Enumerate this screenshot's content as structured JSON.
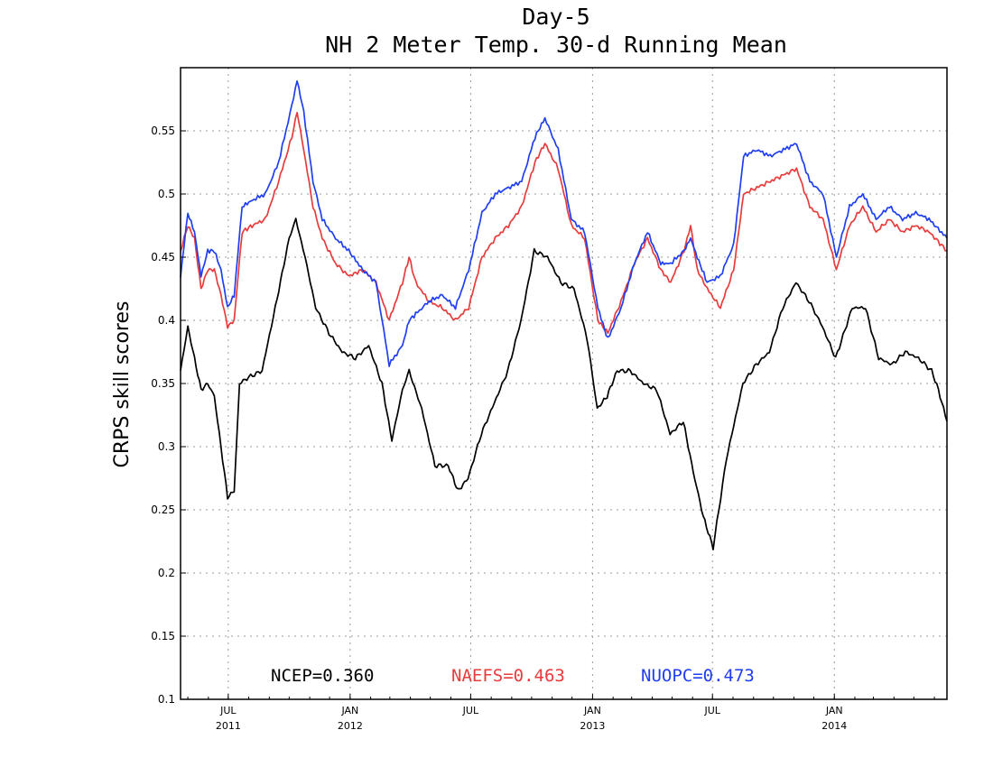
{
  "chart_data": {
    "type": "line",
    "title": "Day-5",
    "subtitle": "NH 2 Meter Temp. 30-d Running Mean",
    "ylabel": "CRPS skill scores",
    "xlabel": "",
    "ylim": [
      0.1,
      0.6
    ],
    "xlim": [
      "2011-04-20",
      "2014-06-20"
    ],
    "grid": true,
    "legend_position": "bottom",
    "yticks": [
      "0.1",
      "0.15",
      "0.2",
      "0.25",
      "0.3",
      "0.35",
      "0.4",
      "0.45",
      "0.5",
      "0.55"
    ],
    "xticks": [
      {
        "date": "2011-07-01",
        "label": "JUL",
        "sublabel": "2011"
      },
      {
        "date": "2012-01-01",
        "label": "JAN",
        "sublabel": "2012"
      },
      {
        "date": "2012-07-01",
        "label": "JUL",
        "sublabel": ""
      },
      {
        "date": "2013-01-01",
        "label": "JAN",
        "sublabel": "2013"
      },
      {
        "date": "2013-07-01",
        "label": "JUL",
        "sublabel": ""
      },
      {
        "date": "2014-01-01",
        "label": "JAN",
        "sublabel": "2014"
      }
    ],
    "series": [
      {
        "name": "NCEP",
        "color": "#000000",
        "legend": "NCEP=0.360",
        "points": [
          [
            "2011-04-20",
            0.36
          ],
          [
            "2011-05-01",
            0.395
          ],
          [
            "2011-05-11",
            0.37
          ],
          [
            "2011-05-21",
            0.345
          ],
          [
            "2011-05-31",
            0.35
          ],
          [
            "2011-06-10",
            0.34
          ],
          [
            "2011-06-20",
            0.3
          ],
          [
            "2011-06-30",
            0.26
          ],
          [
            "2011-07-10",
            0.265
          ],
          [
            "2011-07-18",
            0.35
          ],
          [
            "2011-08-01",
            0.355
          ],
          [
            "2011-08-21",
            0.36
          ],
          [
            "2011-09-10",
            0.41
          ],
          [
            "2011-10-01",
            0.465
          ],
          [
            "2011-10-11",
            0.48
          ],
          [
            "2011-10-25",
            0.45
          ],
          [
            "2011-11-10",
            0.41
          ],
          [
            "2011-11-30",
            0.39
          ],
          [
            "2011-12-20",
            0.375
          ],
          [
            "2012-01-09",
            0.37
          ],
          [
            "2012-01-29",
            0.38
          ],
          [
            "2012-02-18",
            0.35
          ],
          [
            "2012-03-04",
            0.305
          ],
          [
            "2012-03-20",
            0.345
          ],
          [
            "2012-03-30",
            0.36
          ],
          [
            "2012-04-18",
            0.33
          ],
          [
            "2012-05-08",
            0.285
          ],
          [
            "2012-05-28",
            0.285
          ],
          [
            "2012-06-12",
            0.265
          ],
          [
            "2012-06-27",
            0.275
          ],
          [
            "2012-07-17",
            0.31
          ],
          [
            "2012-08-06",
            0.335
          ],
          [
            "2012-08-26",
            0.36
          ],
          [
            "2012-09-15",
            0.4
          ],
          [
            "2012-10-05",
            0.455
          ],
          [
            "2012-10-25",
            0.45
          ],
          [
            "2012-11-14",
            0.43
          ],
          [
            "2012-12-04",
            0.425
          ],
          [
            "2012-12-24",
            0.385
          ],
          [
            "2013-01-08",
            0.33
          ],
          [
            "2013-01-23",
            0.34
          ],
          [
            "2013-02-07",
            0.36
          ],
          [
            "2013-02-27",
            0.36
          ],
          [
            "2013-03-19",
            0.35
          ],
          [
            "2013-04-08",
            0.345
          ],
          [
            "2013-04-28",
            0.31
          ],
          [
            "2013-05-18",
            0.32
          ],
          [
            "2013-06-02",
            0.28
          ],
          [
            "2013-06-17",
            0.245
          ],
          [
            "2013-07-02",
            0.22
          ],
          [
            "2013-07-22",
            0.29
          ],
          [
            "2013-08-16",
            0.35
          ],
          [
            "2013-09-05",
            0.365
          ],
          [
            "2013-09-25",
            0.375
          ],
          [
            "2013-10-15",
            0.41
          ],
          [
            "2013-11-04",
            0.43
          ],
          [
            "2013-11-24",
            0.415
          ],
          [
            "2013-12-14",
            0.395
          ],
          [
            "2014-01-03",
            0.37
          ],
          [
            "2014-01-28",
            0.41
          ],
          [
            "2014-02-17",
            0.41
          ],
          [
            "2014-03-09",
            0.37
          ],
          [
            "2014-03-29",
            0.365
          ],
          [
            "2014-04-18",
            0.375
          ],
          [
            "2014-05-08",
            0.37
          ],
          [
            "2014-05-28",
            0.36
          ],
          [
            "2014-06-07",
            0.345
          ],
          [
            "2014-06-20",
            0.32
          ]
        ]
      },
      {
        "name": "NAEFS",
        "color": "#e83c3c",
        "legend": "NAEFS=0.463",
        "points": [
          [
            "2011-04-20",
            0.455
          ],
          [
            "2011-05-01",
            0.475
          ],
          [
            "2011-05-11",
            0.465
          ],
          [
            "2011-05-21",
            0.425
          ],
          [
            "2011-05-31",
            0.44
          ],
          [
            "2011-06-10",
            0.44
          ],
          [
            "2011-06-20",
            0.42
          ],
          [
            "2011-06-30",
            0.395
          ],
          [
            "2011-07-10",
            0.4
          ],
          [
            "2011-07-22",
            0.47
          ],
          [
            "2011-08-06",
            0.475
          ],
          [
            "2011-08-26",
            0.48
          ],
          [
            "2011-09-15",
            0.51
          ],
          [
            "2011-10-05",
            0.545
          ],
          [
            "2011-10-13",
            0.565
          ],
          [
            "2011-10-23",
            0.535
          ],
          [
            "2011-11-06",
            0.49
          ],
          [
            "2011-11-20",
            0.465
          ],
          [
            "2011-12-10",
            0.445
          ],
          [
            "2011-12-30",
            0.435
          ],
          [
            "2012-01-20",
            0.44
          ],
          [
            "2012-02-09",
            0.43
          ],
          [
            "2012-02-29",
            0.4
          ],
          [
            "2012-03-20",
            0.43
          ],
          [
            "2012-03-30",
            0.45
          ],
          [
            "2012-04-09",
            0.43
          ],
          [
            "2012-04-29",
            0.415
          ],
          [
            "2012-05-19",
            0.41
          ],
          [
            "2012-06-08",
            0.4
          ],
          [
            "2012-06-28",
            0.41
          ],
          [
            "2012-07-18",
            0.45
          ],
          [
            "2012-08-07",
            0.465
          ],
          [
            "2012-08-27",
            0.475
          ],
          [
            "2012-09-16",
            0.49
          ],
          [
            "2012-10-06",
            0.525
          ],
          [
            "2012-10-21",
            0.54
          ],
          [
            "2012-11-10",
            0.52
          ],
          [
            "2012-11-30",
            0.475
          ],
          [
            "2012-12-20",
            0.465
          ],
          [
            "2013-01-09",
            0.4
          ],
          [
            "2013-01-24",
            0.39
          ],
          [
            "2013-02-13",
            0.415
          ],
          [
            "2013-03-05",
            0.445
          ],
          [
            "2013-03-25",
            0.465
          ],
          [
            "2013-04-14",
            0.44
          ],
          [
            "2013-04-29",
            0.43
          ],
          [
            "2013-05-19",
            0.455
          ],
          [
            "2013-05-29",
            0.475
          ],
          [
            "2013-06-08",
            0.44
          ],
          [
            "2013-06-23",
            0.425
          ],
          [
            "2013-07-13",
            0.41
          ],
          [
            "2013-08-02",
            0.44
          ],
          [
            "2013-08-17",
            0.5
          ],
          [
            "2013-09-06",
            0.505
          ],
          [
            "2013-09-26",
            0.51
          ],
          [
            "2013-10-16",
            0.515
          ],
          [
            "2013-11-05",
            0.52
          ],
          [
            "2013-11-25",
            0.49
          ],
          [
            "2013-12-15",
            0.48
          ],
          [
            "2014-01-04",
            0.44
          ],
          [
            "2014-01-24",
            0.475
          ],
          [
            "2014-02-13",
            0.49
          ],
          [
            "2014-03-05",
            0.47
          ],
          [
            "2014-03-25",
            0.48
          ],
          [
            "2014-04-14",
            0.47
          ],
          [
            "2014-05-04",
            0.475
          ],
          [
            "2014-05-24",
            0.47
          ],
          [
            "2014-06-20",
            0.455
          ]
        ]
      },
      {
        "name": "NUOPC",
        "color": "#1f3ff0",
        "legend": "NUOPC=0.473",
        "points": [
          [
            "2011-04-20",
            0.435
          ],
          [
            "2011-05-01",
            0.485
          ],
          [
            "2011-05-11",
            0.47
          ],
          [
            "2011-05-21",
            0.435
          ],
          [
            "2011-05-31",
            0.455
          ],
          [
            "2011-06-10",
            0.455
          ],
          [
            "2011-06-20",
            0.44
          ],
          [
            "2011-06-30",
            0.41
          ],
          [
            "2011-07-10",
            0.42
          ],
          [
            "2011-07-22",
            0.49
          ],
          [
            "2011-08-06",
            0.495
          ],
          [
            "2011-08-26",
            0.5
          ],
          [
            "2011-09-15",
            0.525
          ],
          [
            "2011-10-05",
            0.57
          ],
          [
            "2011-10-13",
            0.59
          ],
          [
            "2011-10-23",
            0.565
          ],
          [
            "2011-11-06",
            0.51
          ],
          [
            "2011-11-20",
            0.48
          ],
          [
            "2011-12-10",
            0.465
          ],
          [
            "2011-12-30",
            0.455
          ],
          [
            "2012-01-20",
            0.44
          ],
          [
            "2012-02-09",
            0.43
          ],
          [
            "2012-02-29",
            0.365
          ],
          [
            "2012-03-20",
            0.38
          ],
          [
            "2012-03-30",
            0.4
          ],
          [
            "2012-04-09",
            0.405
          ],
          [
            "2012-04-29",
            0.415
          ],
          [
            "2012-05-19",
            0.42
          ],
          [
            "2012-06-08",
            0.41
          ],
          [
            "2012-06-28",
            0.44
          ],
          [
            "2012-07-18",
            0.485
          ],
          [
            "2012-08-07",
            0.5
          ],
          [
            "2012-08-27",
            0.505
          ],
          [
            "2012-09-16",
            0.51
          ],
          [
            "2012-10-06",
            0.545
          ],
          [
            "2012-10-21",
            0.56
          ],
          [
            "2012-11-10",
            0.535
          ],
          [
            "2012-11-30",
            0.48
          ],
          [
            "2012-12-20",
            0.47
          ],
          [
            "2013-01-09",
            0.41
          ],
          [
            "2013-01-24",
            0.385
          ],
          [
            "2013-02-13",
            0.41
          ],
          [
            "2013-03-05",
            0.445
          ],
          [
            "2013-03-25",
            0.47
          ],
          [
            "2013-04-14",
            0.445
          ],
          [
            "2013-04-29",
            0.445
          ],
          [
            "2013-05-19",
            0.455
          ],
          [
            "2013-05-29",
            0.465
          ],
          [
            "2013-06-08",
            0.45
          ],
          [
            "2013-06-23",
            0.43
          ],
          [
            "2013-07-13",
            0.435
          ],
          [
            "2013-08-02",
            0.46
          ],
          [
            "2013-08-17",
            0.53
          ],
          [
            "2013-09-06",
            0.535
          ],
          [
            "2013-09-26",
            0.53
          ],
          [
            "2013-10-16",
            0.535
          ],
          [
            "2013-11-05",
            0.54
          ],
          [
            "2013-11-25",
            0.51
          ],
          [
            "2013-12-15",
            0.5
          ],
          [
            "2014-01-04",
            0.45
          ],
          [
            "2014-01-24",
            0.49
          ],
          [
            "2014-02-13",
            0.5
          ],
          [
            "2014-03-05",
            0.48
          ],
          [
            "2014-03-25",
            0.49
          ],
          [
            "2014-04-14",
            0.48
          ],
          [
            "2014-05-04",
            0.485
          ],
          [
            "2014-05-24",
            0.48
          ],
          [
            "2014-06-20",
            0.465
          ]
        ]
      }
    ]
  }
}
